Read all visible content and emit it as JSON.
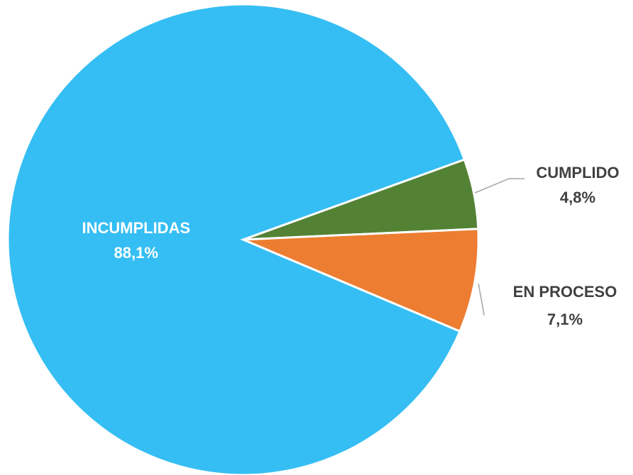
{
  "chart_data": {
    "type": "pie",
    "categories": [
      "CUMPLIDO",
      "EN PROCESO",
      "INCUMPLIDAS"
    ],
    "values": [
      4.8,
      7.1,
      88.1
    ],
    "value_labels": [
      "4,8%",
      "7,1%",
      "88,1%"
    ],
    "colors": [
      "#548235",
      "#ed7d31",
      "#35bef3"
    ]
  }
}
